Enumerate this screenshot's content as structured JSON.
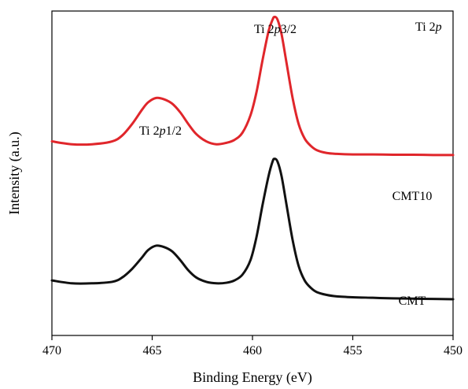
{
  "chart_data": {
    "type": "line",
    "title": "",
    "xlabel": "Binding Energy (eV)",
    "ylabel": "Intensity (a.u.)",
    "xlim": [
      470,
      450
    ],
    "x_reversed": true,
    "ylim": [
      0,
      1.12
    ],
    "yticks_shown": false,
    "grid": false,
    "xticks": [
      470,
      465,
      460,
      455,
      450
    ],
    "xtick_labels": [
      "470",
      "465",
      "460",
      "455",
      "450"
    ],
    "corner_label": {
      "pre": "Ti 2",
      "italic": "p",
      "post": ""
    },
    "annotations": [
      {
        "pre": "Ti 2",
        "italic": "p",
        "post": "1/2",
        "x": 464.7
      },
      {
        "pre": "Ti 2",
        "italic": "p",
        "post": "3/2",
        "x": 458.9
      }
    ],
    "series": [
      {
        "name": "CMT10",
        "color": "#e0262b",
        "x": [
          470,
          469,
          468,
          467,
          466.5,
          466,
          465.5,
          465.2,
          464.8,
          464.4,
          464,
          463.6,
          463.2,
          462.8,
          462.3,
          461.8,
          461.3,
          460.9,
          460.5,
          460.1,
          459.8,
          459.5,
          459.2,
          459.0,
          458.9,
          458.75,
          458.55,
          458.3,
          458.0,
          457.7,
          457.4,
          457.1,
          456.8,
          456.3,
          455.8,
          455,
          454,
          453,
          452,
          451,
          450
        ],
        "y": [
          0.67,
          0.66,
          0.66,
          0.67,
          0.69,
          0.73,
          0.78,
          0.805,
          0.82,
          0.815,
          0.8,
          0.77,
          0.73,
          0.695,
          0.67,
          0.66,
          0.665,
          0.675,
          0.7,
          0.76,
          0.84,
          0.95,
          1.05,
          1.09,
          1.1,
          1.09,
          1.04,
          0.94,
          0.82,
          0.73,
          0.68,
          0.655,
          0.64,
          0.63,
          0.627,
          0.625,
          0.625,
          0.624,
          0.624,
          0.623,
          0.623
        ]
      },
      {
        "name": "CMT",
        "color": "#111111",
        "x": [
          470,
          469,
          468,
          467,
          466.5,
          466,
          465.5,
          465.2,
          464.8,
          464.4,
          464,
          463.6,
          463.2,
          462.8,
          462.3,
          461.8,
          461.3,
          460.9,
          460.5,
          460.1,
          459.8,
          459.5,
          459.2,
          459.0,
          458.9,
          458.75,
          458.55,
          458.3,
          458.0,
          457.7,
          457.4,
          457.1,
          456.8,
          456.3,
          455.8,
          455,
          454,
          453,
          452,
          451,
          450
        ],
        "y": [
          0.19,
          0.18,
          0.18,
          0.185,
          0.2,
          0.23,
          0.27,
          0.295,
          0.31,
          0.305,
          0.29,
          0.26,
          0.225,
          0.2,
          0.185,
          0.18,
          0.182,
          0.19,
          0.21,
          0.26,
          0.34,
          0.45,
          0.55,
          0.6,
          0.61,
          0.6,
          0.55,
          0.45,
          0.33,
          0.24,
          0.19,
          0.165,
          0.15,
          0.14,
          0.135,
          0.132,
          0.13,
          0.128,
          0.127,
          0.126,
          0.125
        ]
      }
    ]
  }
}
